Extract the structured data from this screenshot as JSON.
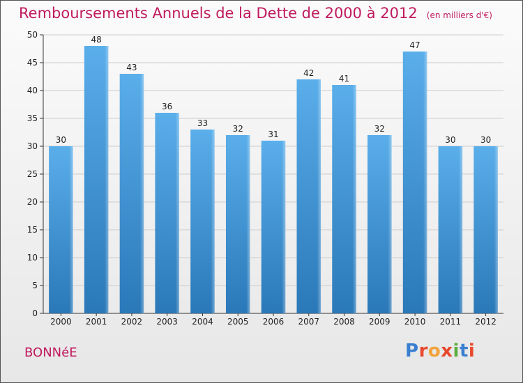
{
  "header": {
    "title": "Remboursements Annuels de la Dette de 2000 à 2012",
    "unit": "(en milliers d'€)"
  },
  "footer": {
    "commune": "BONNéE",
    "logo": {
      "text": "Proxiti",
      "colors": [
        "#3a7fd0",
        "#e8492e",
        "#f2a23a",
        "#e8492e",
        "#5aae3c",
        "#3a7fd0",
        "#e8492e"
      ]
    }
  },
  "colors": {
    "accent": "#c0195e",
    "bar_light": "#5aaeea",
    "bar_dark": "#2a78b8",
    "grid": "#cccccc"
  },
  "chart_data": {
    "type": "bar",
    "title": "Remboursements Annuels de la Dette de 2000 à 2012",
    "subtitle": "(en milliers d'€)",
    "xlabel": "",
    "ylabel": "",
    "categories": [
      "2000",
      "2001",
      "2002",
      "2003",
      "2004",
      "2005",
      "2006",
      "2007",
      "2008",
      "2009",
      "2010",
      "2011",
      "2012"
    ],
    "values": [
      30,
      48,
      43,
      36,
      33,
      32,
      31,
      42,
      41,
      32,
      47,
      30,
      30
    ],
    "ylim": [
      0,
      50
    ],
    "yticks": [
      0,
      5,
      10,
      15,
      20,
      25,
      30,
      35,
      40,
      45,
      50
    ],
    "grid": true,
    "data_labels": true
  }
}
